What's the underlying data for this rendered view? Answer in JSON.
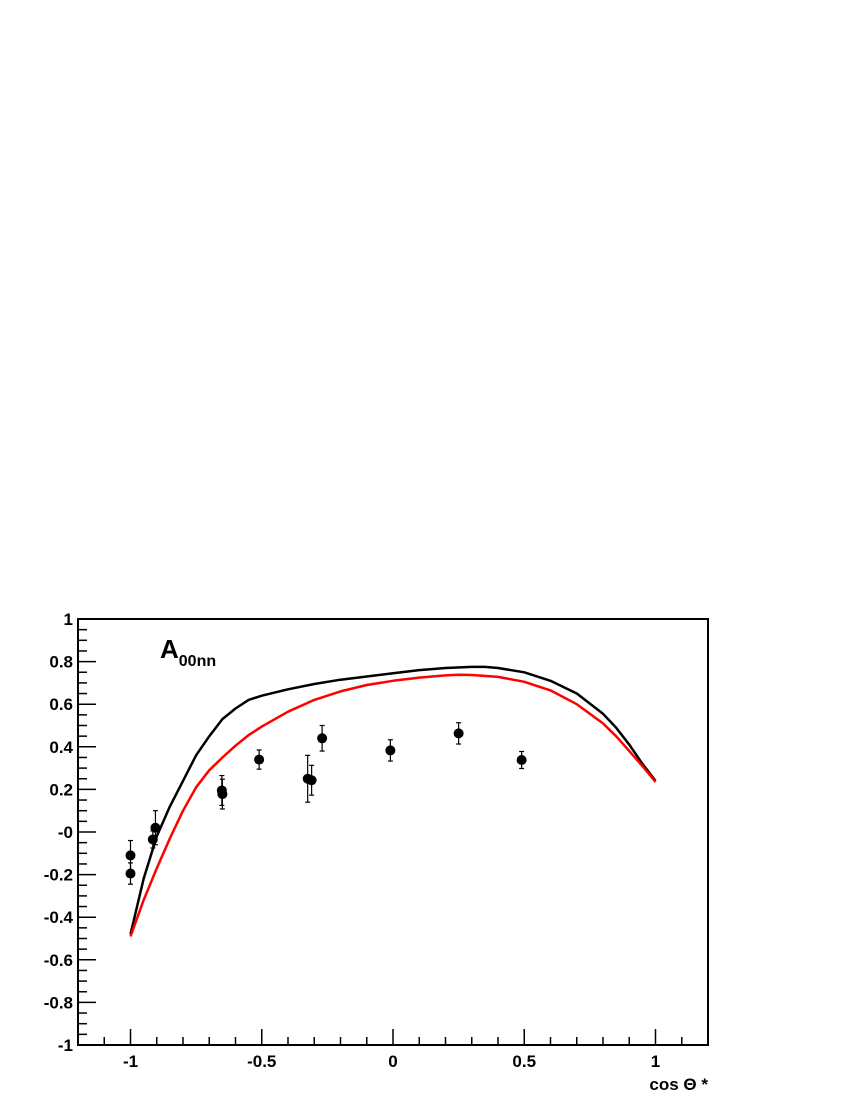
{
  "chart_data": {
    "type": "scatter",
    "title": "",
    "panel_label": {
      "main": "A",
      "subscript": "00nn"
    },
    "xlabel": "cos Θ *",
    "ylabel": "",
    "xlim": [
      -1.2,
      1.2
    ],
    "ylim": [
      -1,
      1
    ],
    "x_ticks": [
      {
        "value": -1,
        "label": "-1"
      },
      {
        "value": -0.5,
        "label": "-0.5"
      },
      {
        "value": 0,
        "label": "0"
      },
      {
        "value": 0.5,
        "label": "0.5"
      },
      {
        "value": 1,
        "label": "1"
      }
    ],
    "y_ticks": [
      {
        "value": -1,
        "label": "-1"
      },
      {
        "value": -0.8,
        "label": "-0.8"
      },
      {
        "value": -0.6,
        "label": "-0.6"
      },
      {
        "value": -0.4,
        "label": "-0.4"
      },
      {
        "value": -0.2,
        "label": "-0.2"
      },
      {
        "value": 0,
        "label": "-0"
      },
      {
        "value": 0.2,
        "label": "0.2"
      },
      {
        "value": 0.4,
        "label": "0.4"
      },
      {
        "value": 0.6,
        "label": "0.6"
      },
      {
        "value": 0.8,
        "label": "0.8"
      },
      {
        "value": 1,
        "label": "1"
      }
    ],
    "x_minor_step": 0.1,
    "y_minor_step": 0.05,
    "grid": false,
    "legend": "none",
    "points": [
      {
        "x": -1.0,
        "y": -0.11,
        "err": 0.07
      },
      {
        "x": -1.0,
        "y": -0.195,
        "err": 0.05
      },
      {
        "x": -0.915,
        "y": -0.035,
        "err": 0.04
      },
      {
        "x": -0.905,
        "y": 0.02,
        "err": 0.08
      },
      {
        "x": -0.652,
        "y": 0.195,
        "err": 0.07
      },
      {
        "x": -0.65,
        "y": 0.178,
        "err": 0.07
      },
      {
        "x": -0.51,
        "y": 0.34,
        "err": 0.045
      },
      {
        "x": -0.325,
        "y": 0.25,
        "err": 0.11
      },
      {
        "x": -0.31,
        "y": 0.243,
        "err": 0.07
      },
      {
        "x": -0.27,
        "y": 0.44,
        "err": 0.06
      },
      {
        "x": -0.01,
        "y": 0.383,
        "err": 0.05
      },
      {
        "x": 0.25,
        "y": 0.463,
        "err": 0.05
      },
      {
        "x": 0.49,
        "y": 0.338,
        "err": 0.04
      }
    ],
    "series": [
      {
        "color": "#000000",
        "x": [
          -1.0,
          -0.95,
          -0.9,
          -0.85,
          -0.8,
          -0.75,
          -0.7,
          -0.65,
          -0.6,
          -0.55,
          -0.5,
          -0.4,
          -0.3,
          -0.2,
          -0.1,
          0.0,
          0.1,
          0.2,
          0.3,
          0.35,
          0.4,
          0.5,
          0.6,
          0.7,
          0.8,
          0.85,
          0.9,
          0.95,
          1.0
        ],
        "y": [
          -0.48,
          -0.22,
          -0.02,
          0.12,
          0.24,
          0.36,
          0.45,
          0.53,
          0.58,
          0.62,
          0.64,
          0.67,
          0.695,
          0.715,
          0.73,
          0.745,
          0.76,
          0.77,
          0.775,
          0.775,
          0.77,
          0.75,
          0.71,
          0.65,
          0.555,
          0.49,
          0.41,
          0.32,
          0.24
        ]
      },
      {
        "color": "#ff0000",
        "x": [
          -1.0,
          -0.95,
          -0.9,
          -0.85,
          -0.8,
          -0.75,
          -0.7,
          -0.65,
          -0.6,
          -0.55,
          -0.5,
          -0.4,
          -0.3,
          -0.2,
          -0.1,
          0.0,
          0.1,
          0.2,
          0.25,
          0.3,
          0.4,
          0.5,
          0.6,
          0.7,
          0.8,
          0.85,
          0.9,
          0.95,
          1.0
        ],
        "y": [
          -0.49,
          -0.32,
          -0.17,
          -0.03,
          0.1,
          0.21,
          0.29,
          0.35,
          0.405,
          0.455,
          0.495,
          0.565,
          0.62,
          0.66,
          0.69,
          0.71,
          0.725,
          0.735,
          0.738,
          0.737,
          0.728,
          0.705,
          0.665,
          0.6,
          0.51,
          0.45,
          0.38,
          0.31,
          0.235
        ]
      }
    ]
  }
}
